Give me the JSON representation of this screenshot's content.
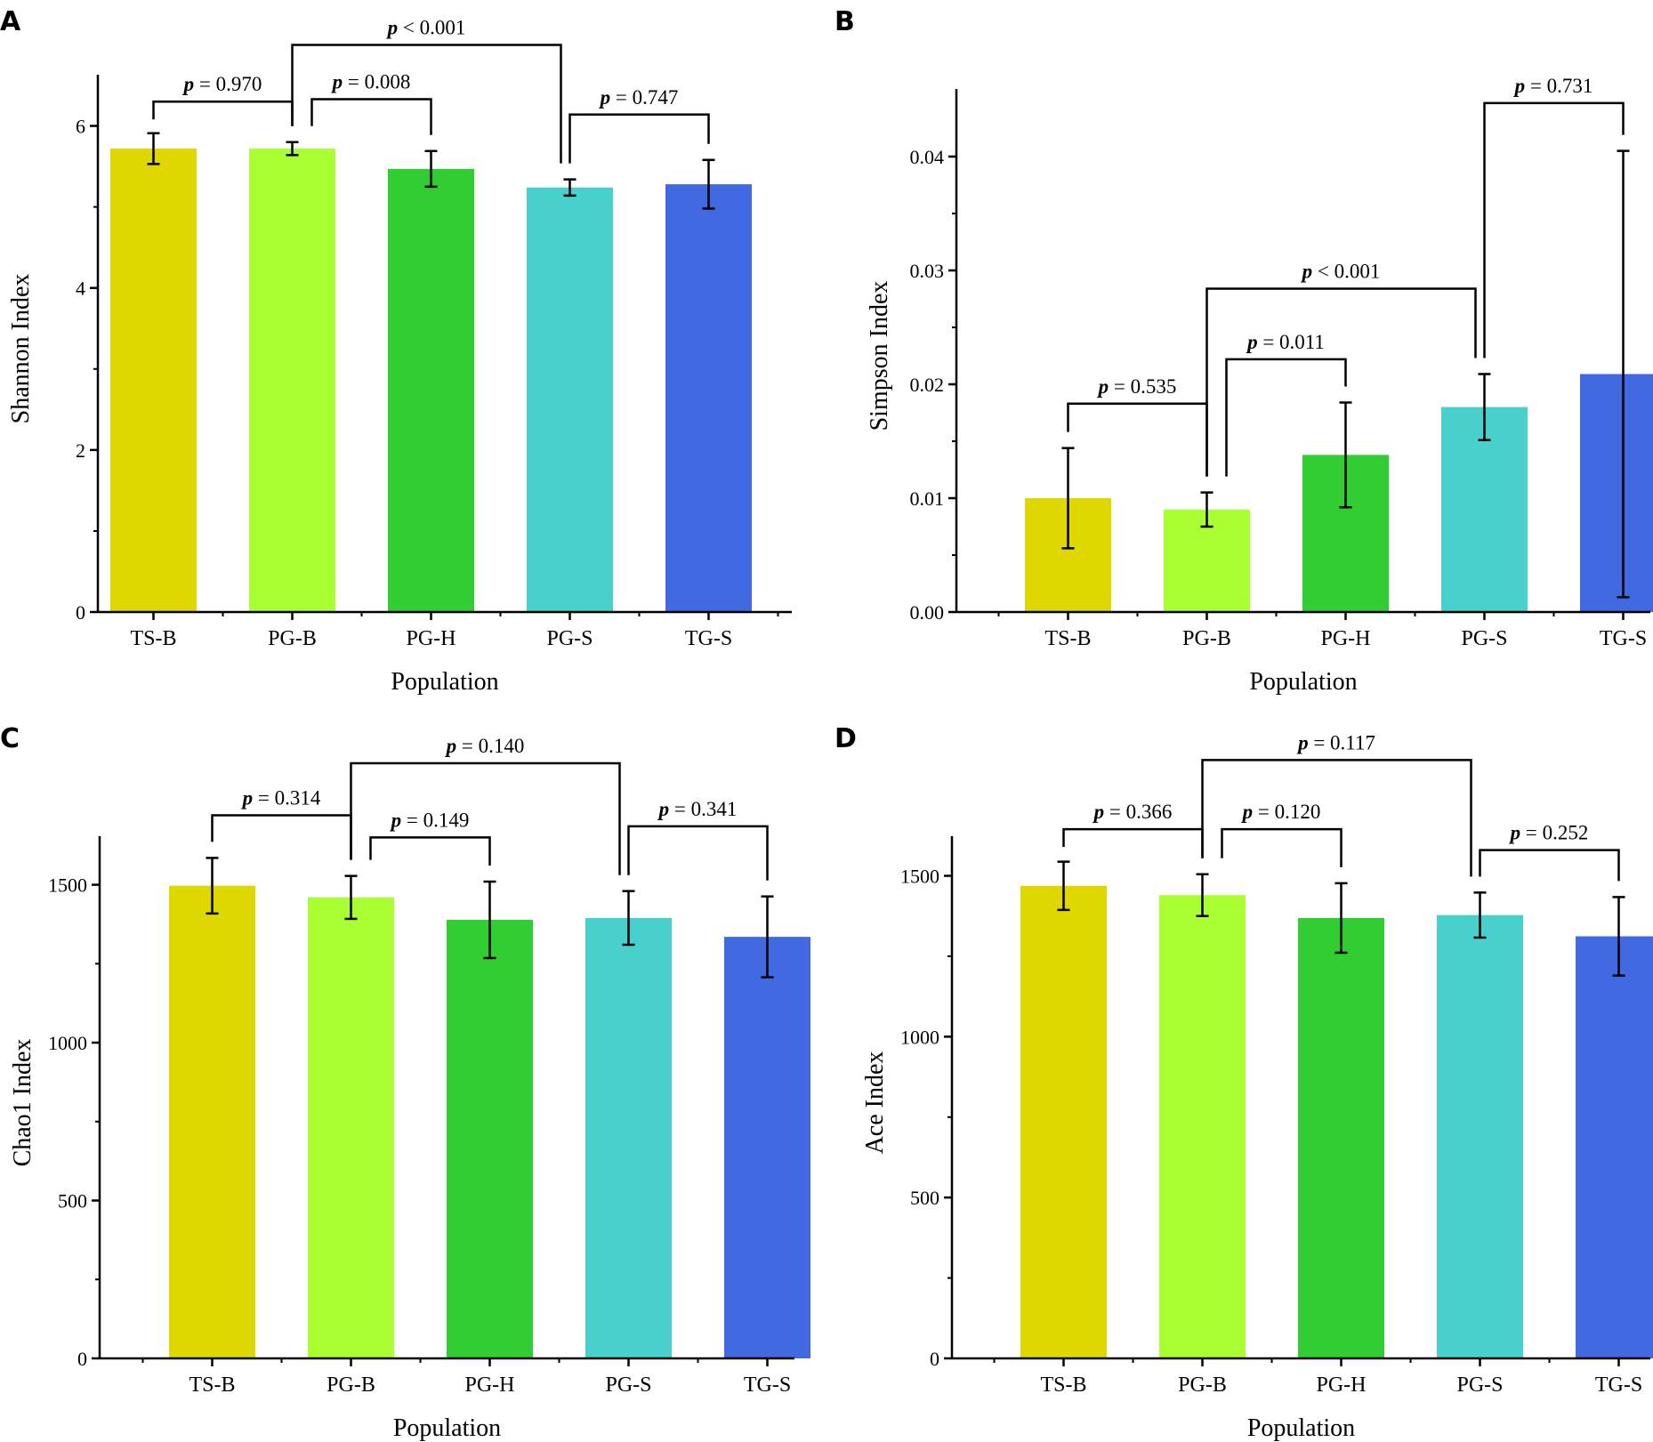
{
  "chart_data": [
    {
      "panel": "A",
      "type": "bar",
      "categories": [
        "TS-B",
        "PG-B",
        "PG-H",
        "PG-S",
        "TG-S"
      ],
      "values": [
        5.72,
        5.72,
        5.47,
        5.24,
        5.28
      ],
      "errors": [
        0.19,
        0.08,
        0.22,
        0.1,
        0.3
      ],
      "ylabel": "Shannon Index",
      "xlabel": "Population",
      "ylim": [
        0,
        6.5
      ],
      "yticks": [
        0,
        2,
        4,
        6
      ],
      "ytick_labels": [
        "0",
        "2",
        "4",
        "6"
      ],
      "comparisons": [
        {
          "from": 0,
          "to": 1,
          "p": "0.970",
          "op": "=",
          "rel_y": 6.3,
          "mid_shift": 0
        },
        {
          "from": 1,
          "to": 2,
          "p": "0.008",
          "op": "=",
          "rel_y": 6.33,
          "mid_shift": 0
        },
        {
          "from": 1,
          "to": 3,
          "p": "0.001",
          "op": "<",
          "rel_y": 7.0,
          "mid_shift": -0.1
        },
        {
          "from": 3,
          "to": 4,
          "p": "0.747",
          "op": "=",
          "rel_y": 6.14,
          "mid_shift": 0
        }
      ]
    },
    {
      "panel": "B",
      "type": "bar",
      "categories": [
        "TS-B",
        "PG-B",
        "PG-H",
        "PG-S",
        "TG-S"
      ],
      "values": [
        0.01,
        0.009,
        0.0138,
        0.018,
        0.0209
      ],
      "errors": [
        0.0044,
        0.0015,
        0.0046,
        0.0029,
        0.0196
      ],
      "ylabel": "Simpson Index",
      "xlabel": "Population",
      "ylim": [
        0,
        0.045
      ],
      "yticks": [
        0,
        0.01,
        0.02,
        0.03,
        0.04
      ],
      "ytick_labels": [
        "0.00",
        "0.01",
        "0.02",
        "0.03",
        "0.04"
      ],
      "comparisons": [
        {
          "from": 0,
          "to": 1,
          "p": "0.535",
          "op": "=",
          "rel_y": 0.0183,
          "mid_shift": 0
        },
        {
          "from": 1,
          "to": 2,
          "p": "0.011",
          "op": "=",
          "rel_y": 0.0222,
          "mid_shift": 0
        },
        {
          "from": 1,
          "to": 3,
          "p": "0.001",
          "op": "<",
          "rel_y": 0.0284,
          "mid_shift": -0.1
        },
        {
          "from": 3,
          "to": 4,
          "p": "0.731",
          "op": "=",
          "rel_y": 0.0447,
          "mid_shift": 0
        }
      ]
    },
    {
      "panel": "C",
      "type": "bar",
      "categories": [
        "TS-B",
        "PG-B",
        "PG-H",
        "PG-S",
        "TG-S"
      ],
      "values": [
        1497,
        1460,
        1389,
        1395,
        1335
      ],
      "errors": [
        88,
        68,
        121,
        85,
        128
      ],
      "ylabel": "Chao1 Index",
      "xlabel": "Population",
      "ylim": [
        0,
        1620
      ],
      "yticks": [
        0,
        500,
        1000,
        1500
      ],
      "ytick_labels": [
        "0",
        "500",
        "1000",
        "1500"
      ],
      "comparisons": [
        {
          "from": 0,
          "to": 1,
          "p": "0.314",
          "op": "=",
          "rel_y": 1720,
          "mid_shift": 0
        },
        {
          "from": 1,
          "to": 2,
          "p": "0.149",
          "op": "=",
          "rel_y": 1650,
          "mid_shift": 0
        },
        {
          "from": 1,
          "to": 3,
          "p": "0.140",
          "op": "=",
          "rel_y": 1885,
          "mid_shift": -0.1
        },
        {
          "from": 3,
          "to": 4,
          "p": "0.341",
          "op": "=",
          "rel_y": 1685,
          "mid_shift": 0
        }
      ]
    },
    {
      "panel": "D",
      "type": "bar",
      "categories": [
        "TS-B",
        "PG-B",
        "PG-H",
        "PG-S",
        "TG-S"
      ],
      "values": [
        1469,
        1440,
        1369,
        1378,
        1312
      ],
      "errors": [
        75,
        65,
        108,
        70,
        122
      ],
      "ylabel": "Ace Index",
      "xlabel": "Population",
      "ylim": [
        0,
        1590
      ],
      "yticks": [
        0,
        500,
        1000,
        1500
      ],
      "ytick_labels": [
        "0",
        "500",
        "1000",
        "1500"
      ],
      "comparisons": [
        {
          "from": 0,
          "to": 1,
          "p": "0.366",
          "op": "=",
          "rel_y": 1645,
          "mid_shift": 0
        },
        {
          "from": 1,
          "to": 2,
          "p": "0.120",
          "op": "=",
          "rel_y": 1645,
          "mid_shift": 0
        },
        {
          "from": 1,
          "to": 3,
          "p": "0.117",
          "op": "=",
          "rel_y": 1860,
          "mid_shift": -0.1
        },
        {
          "from": 3,
          "to": 4,
          "p": "0.252",
          "op": "=",
          "rel_y": 1580,
          "mid_shift": 0
        }
      ]
    }
  ],
  "p_symbol": "p",
  "colors": [
    "#dfd700",
    "#aaff32",
    "#32cd32",
    "#48d1cc",
    "#4169e1"
  ]
}
